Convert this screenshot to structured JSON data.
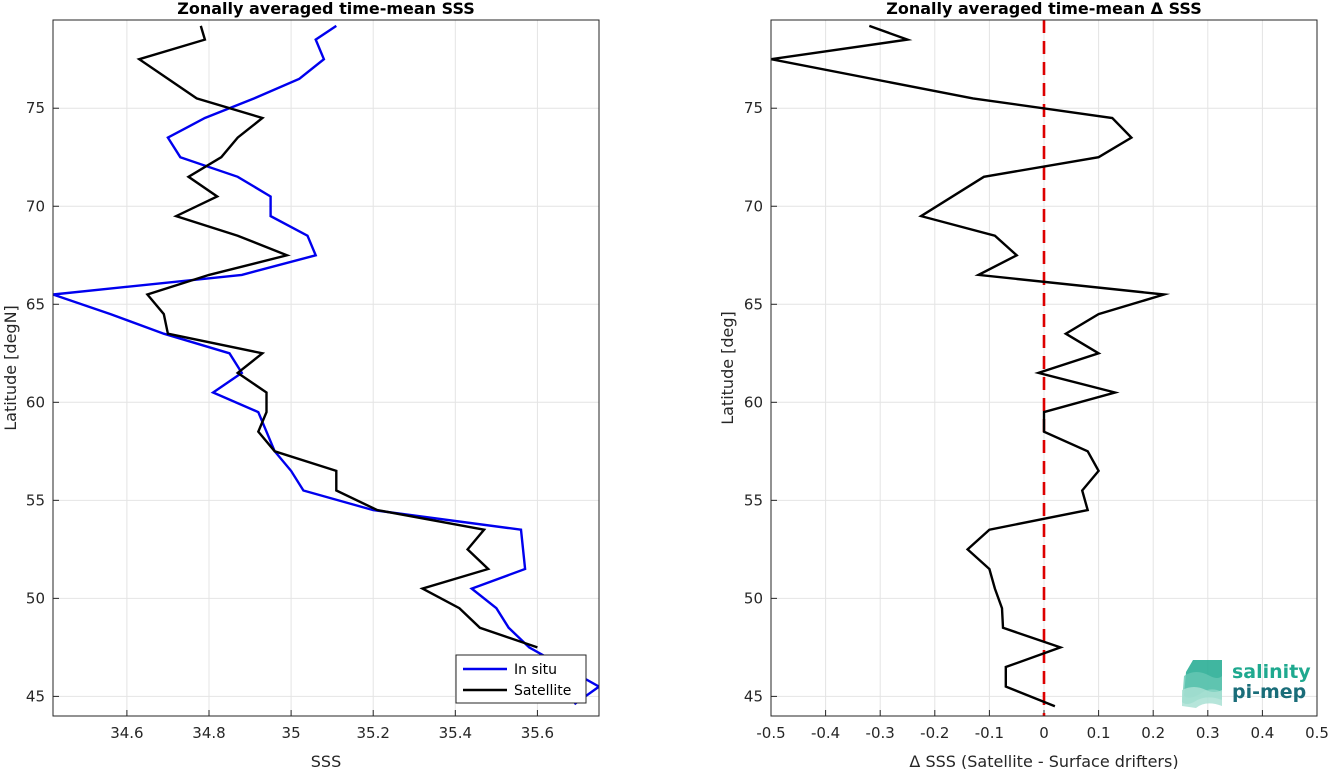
{
  "chart_data": [
    {
      "type": "line",
      "title": "Zonally averaged time-mean SSS",
      "xlabel": "SSS",
      "ylabel": "Latitude [degN]",
      "xlim": [
        34.42,
        35.75
      ],
      "ylim": [
        44,
        79.5
      ],
      "xticks": [
        34.6,
        34.8,
        35,
        35.2,
        35.4,
        35.6
      ],
      "xtick_labels": [
        "34.6",
        "34.8",
        "35",
        "35.2",
        "35.4",
        "35.6"
      ],
      "yticks": [
        45,
        50,
        55,
        60,
        65,
        70,
        75
      ],
      "ytick_labels": [
        "45",
        "50",
        "55",
        "60",
        "65",
        "70",
        "75"
      ],
      "grid": true,
      "legend_position": "bottom-right",
      "series": [
        {
          "name": "In situ",
          "color": "#0000ee",
          "points": [
            [
              35.69,
              44.6
            ],
            [
              35.75,
              45.5
            ],
            [
              35.58,
              47.5
            ],
            [
              35.53,
              48.5
            ],
            [
              35.5,
              49.5
            ],
            [
              35.44,
              50.5
            ],
            [
              35.57,
              51.5
            ],
            [
              35.56,
              53.5
            ],
            [
              35.2,
              54.5
            ],
            [
              35.03,
              55.5
            ],
            [
              35.0,
              56.5
            ],
            [
              34.96,
              57.5
            ],
            [
              34.94,
              58.5
            ],
            [
              34.92,
              59.5
            ],
            [
              34.81,
              60.5
            ],
            [
              34.88,
              61.5
            ],
            [
              34.85,
              62.5
            ],
            [
              34.69,
              63.5
            ],
            [
              34.56,
              64.5
            ],
            [
              34.42,
              65.5
            ],
            [
              34.88,
              66.5
            ],
            [
              35.06,
              67.5
            ],
            [
              35.04,
              68.5
            ],
            [
              34.95,
              69.5
            ],
            [
              34.95,
              70.5
            ],
            [
              34.87,
              71.5
            ],
            [
              34.73,
              72.5
            ],
            [
              34.7,
              73.5
            ],
            [
              34.79,
              74.5
            ],
            [
              34.91,
              75.5
            ],
            [
              35.02,
              76.5
            ],
            [
              35.08,
              77.5
            ],
            [
              35.06,
              78.5
            ],
            [
              35.11,
              79.2
            ]
          ]
        },
        {
          "name": "Satellite",
          "color": "#000000",
          "points": [
            [
              35.6,
              47.5
            ],
            [
              35.46,
              48.5
            ],
            [
              35.41,
              49.5
            ],
            [
              35.32,
              50.5
            ],
            [
              35.48,
              51.5
            ],
            [
              35.43,
              52.5
            ],
            [
              35.47,
              53.5
            ],
            [
              35.21,
              54.5
            ],
            [
              35.11,
              55.5
            ],
            [
              35.11,
              56.5
            ],
            [
              34.96,
              57.5
            ],
            [
              34.92,
              58.5
            ],
            [
              34.94,
              59.5
            ],
            [
              34.94,
              60.5
            ],
            [
              34.87,
              61.5
            ],
            [
              34.93,
              62.5
            ],
            [
              34.7,
              63.5
            ],
            [
              34.69,
              64.5
            ],
            [
              34.65,
              65.5
            ],
            [
              34.8,
              66.5
            ],
            [
              34.99,
              67.5
            ],
            [
              34.87,
              68.5
            ],
            [
              34.72,
              69.5
            ],
            [
              34.82,
              70.5
            ],
            [
              34.75,
              71.5
            ],
            [
              34.83,
              72.5
            ],
            [
              34.87,
              73.5
            ],
            [
              34.93,
              74.5
            ],
            [
              34.77,
              75.5
            ],
            [
              34.7,
              76.5
            ],
            [
              34.63,
              77.5
            ],
            [
              34.79,
              78.5
            ],
            [
              34.78,
              79.2
            ]
          ]
        }
      ]
    },
    {
      "type": "line",
      "title": "Zonally averaged time-mean Δ SSS",
      "xlabel": "Δ SSS (Satellite - Surface drifters)",
      "ylabel": "Latitude [deg]",
      "xlim": [
        -0.5,
        0.5
      ],
      "ylim": [
        44,
        79.5
      ],
      "xticks": [
        -0.5,
        -0.4,
        -0.3,
        -0.2,
        -0.1,
        0,
        0.1,
        0.2,
        0.3,
        0.4,
        0.5
      ],
      "xtick_labels": [
        "-0.5",
        "-0.4",
        "-0.3",
        "-0.2",
        "-0.1",
        "0",
        "0.1",
        "0.2",
        "0.3",
        "0.4",
        "0.5"
      ],
      "yticks": [
        45,
        50,
        55,
        60,
        65,
        70,
        75
      ],
      "ytick_labels": [
        "45",
        "50",
        "55",
        "60",
        "65",
        "70",
        "75"
      ],
      "grid": true,
      "reference_line": {
        "x": 0,
        "color": "#dd0000",
        "style": "dashed"
      },
      "series": [
        {
          "color": "#000000",
          "points": [
            [
              0.02,
              44.5
            ],
            [
              -0.07,
              45.5
            ],
            [
              -0.07,
              46.5
            ],
            [
              0.03,
              47.5
            ],
            [
              -0.075,
              48.5
            ],
            [
              -0.077,
              49.5
            ],
            [
              -0.09,
              50.5
            ],
            [
              -0.1,
              51.5
            ],
            [
              -0.14,
              52.5
            ],
            [
              -0.1,
              53.5
            ],
            [
              0.08,
              54.5
            ],
            [
              0.07,
              55.5
            ],
            [
              0.1,
              56.5
            ],
            [
              0.08,
              57.5
            ],
            [
              0.0,
              58.5
            ],
            [
              0.0,
              59.5
            ],
            [
              0.13,
              60.5
            ],
            [
              -0.01,
              61.5
            ],
            [
              0.1,
              62.5
            ],
            [
              0.04,
              63.5
            ],
            [
              0.1,
              64.5
            ],
            [
              0.22,
              65.5
            ],
            [
              -0.12,
              66.5
            ],
            [
              -0.05,
              67.5
            ],
            [
              -0.09,
              68.5
            ],
            [
              -0.225,
              69.5
            ],
            [
              -0.11,
              71.5
            ],
            [
              0.1,
              72.5
            ],
            [
              0.16,
              73.5
            ],
            [
              0.125,
              74.5
            ],
            [
              -0.13,
              75.5
            ],
            [
              -0.5,
              77.5
            ],
            [
              -0.25,
              78.5
            ],
            [
              -0.32,
              79.2
            ]
          ]
        }
      ]
    }
  ],
  "legend": {
    "items": [
      "In situ",
      "Satellite"
    ]
  },
  "logo": {
    "line1": "salinity",
    "line2": "pi-mep"
  }
}
